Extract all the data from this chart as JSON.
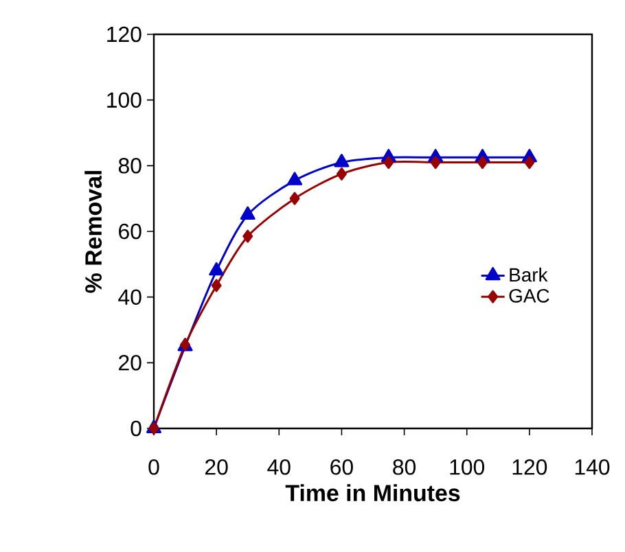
{
  "chart_data": {
    "type": "line",
    "xlabel": "Time in Minutes",
    "ylabel": "% Removal",
    "x": [
      0,
      10,
      20,
      30,
      45,
      60,
      75,
      90,
      105,
      120
    ],
    "series": [
      {
        "name": "Bark",
        "color": "#0000cc",
        "marker": "triangle",
        "values": [
          0,
          25,
          48,
          65,
          75.5,
          81,
          82.5,
          82.5,
          82.5,
          82.5
        ]
      },
      {
        "name": "GAC",
        "color": "#990000",
        "marker": "diamond",
        "values": [
          0,
          25.5,
          43.5,
          58.5,
          70,
          77.5,
          81,
          81,
          81,
          81
        ]
      }
    ],
    "xlim": [
      0,
      140
    ],
    "ylim": [
      0,
      120
    ],
    "xticks": [
      0,
      20,
      40,
      60,
      80,
      100,
      120,
      140
    ],
    "yticks": [
      0,
      20,
      40,
      60,
      80,
      100,
      120
    ],
    "grid": false,
    "legend": "right",
    "line_style": "solid"
  }
}
